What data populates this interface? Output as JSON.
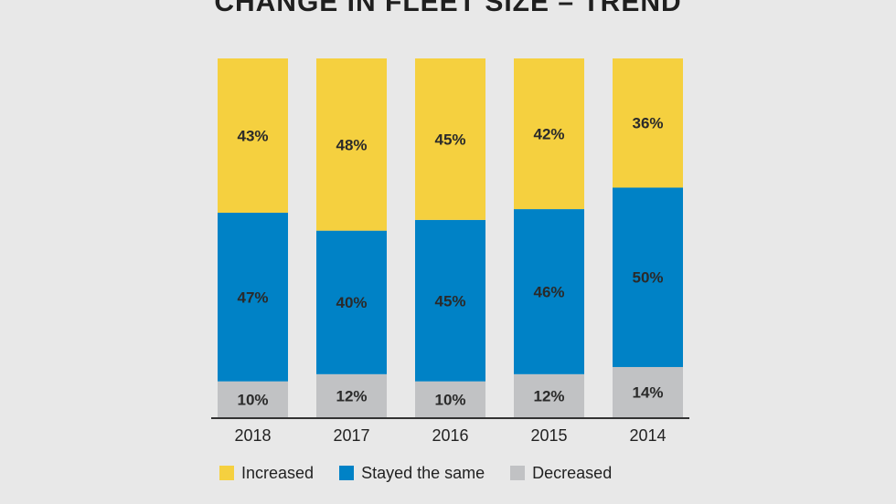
{
  "chart_data": {
    "type": "bar",
    "stacked": true,
    "orientation": "vertical",
    "title": "CHANGE IN FLEET SIZE – TREND",
    "categories": [
      "2018",
      "2017",
      "2016",
      "2015",
      "2014"
    ],
    "series": [
      {
        "name": "Decreased",
        "color": "#c1c2c4",
        "values": [
          10,
          12,
          10,
          12,
          14
        ],
        "labels": [
          "10%",
          "12%",
          "10%",
          "12%",
          "14%"
        ]
      },
      {
        "name": "Stayed the same",
        "color": "#0082c6",
        "values": [
          47,
          40,
          45,
          46,
          50
        ],
        "labels": [
          "47%",
          "40%",
          "45%",
          "46%",
          "50%"
        ]
      },
      {
        "name": "Increased",
        "color": "#f5d03f",
        "values": [
          43,
          48,
          45,
          42,
          36
        ],
        "labels": [
          "43%",
          "48%",
          "45%",
          "42%",
          "36%"
        ]
      }
    ],
    "ylim": [
      0,
      100
    ],
    "grid": false,
    "legend_position": "bottom-left",
    "legend_order": [
      "Increased",
      "Stayed the same",
      "Decreased"
    ]
  }
}
